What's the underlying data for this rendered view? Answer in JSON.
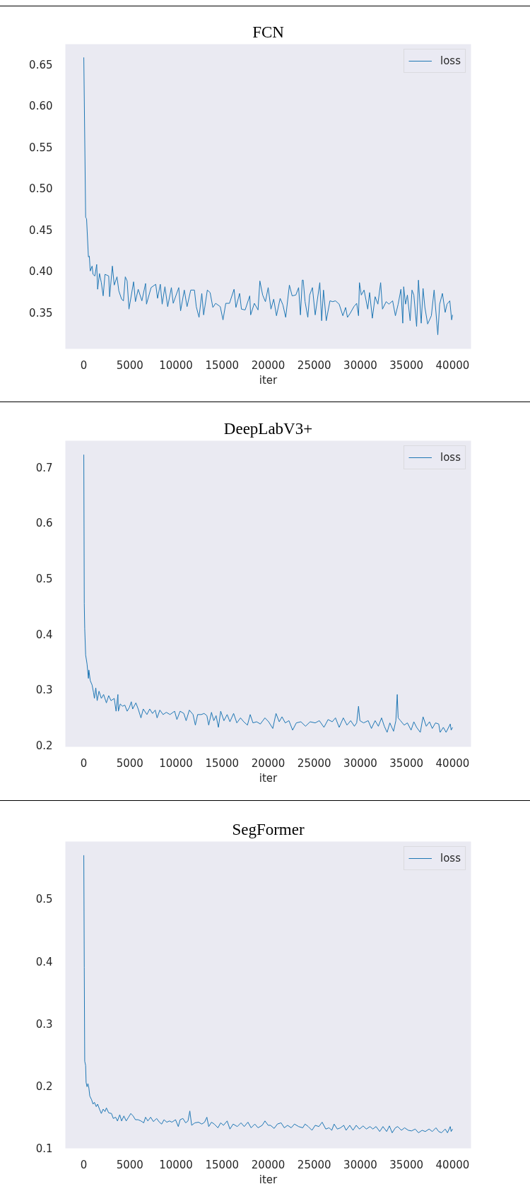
{
  "chart_data": [
    {
      "type": "line",
      "title": "FCN",
      "xlabel": "iter",
      "legend": "top right",
      "line_style": "solid",
      "xlim": [
        -2000,
        42000
      ],
      "ylim": [
        0.306,
        0.674
      ],
      "xticks": [
        0,
        5000,
        10000,
        15000,
        20000,
        25000,
        30000,
        35000,
        40000
      ],
      "yticks": [
        0.35,
        {
          "value": 0.4,
          "label": "0.40"
        },
        0.45,
        {
          "value": 0.5,
          "label": "0.50"
        },
        0.55,
        {
          "value": 0.6,
          "label": "0.60"
        },
        0.65
      ],
      "x": [
        0,
        200,
        300,
        500,
        600,
        700,
        900,
        1000,
        1200,
        1400,
        1500,
        1700,
        1900,
        2100,
        2300,
        2700,
        2800,
        3100,
        3300,
        3600,
        3800,
        4100,
        4300,
        4500,
        4700,
        4900,
        5400,
        5600,
        5900,
        6300,
        6700,
        6800,
        7300,
        7800,
        8000,
        8300,
        8500,
        8800,
        9100,
        9500,
        9700,
        10300,
        10500,
        10900,
        11200,
        11600,
        12000,
        12200,
        12500,
        12800,
        13000,
        13400,
        13700,
        14000,
        14300,
        14800,
        15100,
        15400,
        15800,
        16300,
        16500,
        16900,
        17100,
        17500,
        18000,
        18100,
        18500,
        18900,
        19100,
        19400,
        19700,
        20000,
        20300,
        20600,
        20900,
        21300,
        21600,
        21900,
        22300,
        22600,
        23000,
        23300,
        23500,
        23700,
        23800,
        24000,
        24300,
        24500,
        24800,
        25100,
        25600,
        25800,
        26000,
        26300,
        26700,
        27000,
        27300,
        27700,
        28100,
        28400,
        28600,
        28900,
        29300,
        29600,
        29800,
        29900,
        30100,
        30400,
        30800,
        31000,
        31300,
        31600,
        31900,
        32200,
        32400,
        32800,
        33100,
        33500,
        33800,
        34100,
        34400,
        34600,
        34700,
        34900,
        35100,
        35400,
        35600,
        35800,
        36100,
        36300,
        36600,
        36800,
        37000,
        37300,
        37700,
        38000,
        38400,
        38600,
        38900,
        39200,
        39400,
        39700,
        39900,
        40000
      ],
      "series": [
        {
          "name": "loss",
          "color": "#1f77b4",
          "values": [
            0.658,
            0.465,
            0.463,
            0.417,
            0.418,
            0.4,
            0.406,
            0.396,
            0.394,
            0.408,
            0.378,
            0.397,
            0.386,
            0.37,
            0.396,
            0.394,
            0.369,
            0.406,
            0.383,
            0.393,
            0.376,
            0.366,
            0.364,
            0.393,
            0.388,
            0.354,
            0.387,
            0.363,
            0.378,
            0.364,
            0.385,
            0.36,
            0.38,
            0.384,
            0.367,
            0.384,
            0.36,
            0.381,
            0.357,
            0.38,
            0.361,
            0.38,
            0.352,
            0.377,
            0.357,
            0.377,
            0.377,
            0.357,
            0.344,
            0.373,
            0.347,
            0.377,
            0.374,
            0.356,
            0.361,
            0.357,
            0.341,
            0.361,
            0.361,
            0.378,
            0.356,
            0.373,
            0.354,
            0.353,
            0.37,
            0.347,
            0.361,
            0.353,
            0.388,
            0.371,
            0.363,
            0.38,
            0.354,
            0.366,
            0.346,
            0.367,
            0.359,
            0.344,
            0.383,
            0.37,
            0.371,
            0.38,
            0.347,
            0.389,
            0.389,
            0.363,
            0.344,
            0.371,
            0.38,
            0.347,
            0.386,
            0.34,
            0.377,
            0.34,
            0.364,
            0.363,
            0.364,
            0.36,
            0.346,
            0.356,
            0.344,
            0.349,
            0.357,
            0.361,
            0.346,
            0.386,
            0.371,
            0.377,
            0.354,
            0.374,
            0.343,
            0.369,
            0.36,
            0.386,
            0.354,
            0.363,
            0.36,
            0.364,
            0.346,
            0.36,
            0.378,
            0.337,
            0.381,
            0.36,
            0.371,
            0.34,
            0.377,
            0.371,
            0.333,
            0.389,
            0.337,
            0.379,
            0.356,
            0.336,
            0.346,
            0.377,
            0.323,
            0.36,
            0.373,
            0.35,
            0.36,
            0.364,
            0.341,
            0.347
          ]
        }
      ]
    },
    {
      "type": "line",
      "title": "DeepLabV3+",
      "xlabel": "iter",
      "legend": "top right",
      "line_style": "solid",
      "xlim": [
        -2000,
        42000
      ],
      "ylim": [
        0.197,
        0.747
      ],
      "xticks": [
        0,
        5000,
        10000,
        15000,
        20000,
        25000,
        30000,
        35000,
        40000
      ],
      "yticks": [
        0.2,
        0.3,
        0.4,
        0.5,
        0.6,
        0.7
      ],
      "x": [
        0,
        50,
        100,
        200,
        350,
        500,
        550,
        700,
        900,
        1050,
        1150,
        1300,
        1450,
        1650,
        1900,
        2150,
        2450,
        2700,
        2950,
        3300,
        3500,
        3700,
        3750,
        3950,
        4200,
        4450,
        4700,
        4950,
        5150,
        5300,
        5650,
        5900,
        6200,
        6450,
        6850,
        7150,
        7450,
        7750,
        7950,
        8250,
        8600,
        8950,
        9350,
        9850,
        10100,
        10450,
        10850,
        11100,
        11450,
        11850,
        12100,
        12350,
        12750,
        13050,
        13350,
        13550,
        13850,
        14100,
        14350,
        14600,
        14850,
        15200,
        15550,
        15850,
        16250,
        16600,
        17000,
        17350,
        17750,
        18050,
        18350,
        18750,
        19150,
        19650,
        20050,
        20500,
        20850,
        21200,
        21500,
        21850,
        22250,
        22650,
        23050,
        23550,
        24050,
        24550,
        25100,
        25550,
        26050,
        26500,
        26950,
        27300,
        27700,
        28150,
        28550,
        28950,
        29350,
        29600,
        29800,
        29950,
        30350,
        30850,
        31200,
        31600,
        31950,
        32300,
        32600,
        32900,
        33200,
        33600,
        33850,
        34000,
        34100,
        34350,
        34750,
        35100,
        35500,
        35800,
        36100,
        36500,
        36800,
        37150,
        37500,
        37800,
        38150,
        38500,
        38650,
        39000,
        39300,
        39750,
        39850,
        40000
      ],
      "series": [
        {
          "name": "loss",
          "color": "#1f77b4",
          "values": [
            0.722,
            0.455,
            0.409,
            0.362,
            0.346,
            0.32,
            0.335,
            0.316,
            0.308,
            0.295,
            0.284,
            0.303,
            0.28,
            0.297,
            0.284,
            0.291,
            0.276,
            0.289,
            0.28,
            0.284,
            0.261,
            0.291,
            0.261,
            0.274,
            0.27,
            0.272,
            0.261,
            0.268,
            0.278,
            0.265,
            0.276,
            0.265,
            0.249,
            0.265,
            0.255,
            0.265,
            0.257,
            0.263,
            0.249,
            0.263,
            0.255,
            0.259,
            0.255,
            0.261,
            0.246,
            0.261,
            0.257,
            0.244,
            0.263,
            0.255,
            0.236,
            0.255,
            0.255,
            0.257,
            0.253,
            0.236,
            0.259,
            0.244,
            0.253,
            0.232,
            0.261,
            0.244,
            0.255,
            0.242,
            0.257,
            0.24,
            0.249,
            0.242,
            0.236,
            0.255,
            0.24,
            0.242,
            0.238,
            0.249,
            0.242,
            0.23,
            0.257,
            0.242,
            0.251,
            0.24,
            0.244,
            0.227,
            0.24,
            0.242,
            0.234,
            0.242,
            0.24,
            0.244,
            0.232,
            0.246,
            0.242,
            0.249,
            0.232,
            0.249,
            0.236,
            0.244,
            0.234,
            0.24,
            0.27,
            0.244,
            0.24,
            0.244,
            0.23,
            0.244,
            0.234,
            0.249,
            0.234,
            0.223,
            0.24,
            0.225,
            0.244,
            0.291,
            0.249,
            0.244,
            0.236,
            0.24,
            0.227,
            0.242,
            0.232,
            0.223,
            0.251,
            0.234,
            0.242,
            0.23,
            0.24,
            0.238,
            0.223,
            0.232,
            0.223,
            0.238,
            0.227,
            0.232
          ]
        }
      ]
    },
    {
      "type": "line",
      "title": "SegFormer",
      "xlabel": "iter",
      "legend": "top right",
      "line_style": "solid",
      "xlim": [
        -2000,
        42000
      ],
      "ylim": [
        0.099,
        0.592
      ],
      "xticks": [
        0,
        5000,
        10000,
        15000,
        20000,
        25000,
        30000,
        35000,
        40000
      ],
      "yticks": [
        0.1,
        0.2,
        0.3,
        0.4,
        0.5
      ],
      "x": [
        0,
        50,
        100,
        200,
        250,
        350,
        450,
        550,
        650,
        850,
        1000,
        1150,
        1350,
        1500,
        1700,
        1900,
        2100,
        2300,
        2450,
        2700,
        3000,
        3200,
        3450,
        3650,
        3900,
        4100,
        4350,
        4600,
        4850,
        5100,
        5350,
        5600,
        5900,
        6200,
        6500,
        6700,
        6950,
        7250,
        7550,
        7900,
        8200,
        8450,
        8700,
        9000,
        9300,
        9550,
        9950,
        10250,
        10450,
        10750,
        11050,
        11300,
        11500,
        11700,
        12050,
        12450,
        12800,
        13100,
        13350,
        13550,
        13850,
        14150,
        14550,
        14850,
        15150,
        15550,
        15850,
        16200,
        16650,
        17050,
        17400,
        17800,
        18150,
        18550,
        18900,
        19350,
        19650,
        20000,
        20250,
        20650,
        21000,
        21400,
        21750,
        22100,
        22500,
        22850,
        23300,
        23750,
        24000,
        24350,
        24750,
        25100,
        25500,
        25850,
        26250,
        26600,
        26900,
        27150,
        27500,
        27850,
        28200,
        28450,
        28850,
        29200,
        29550,
        29900,
        30300,
        30650,
        31050,
        31350,
        31700,
        32100,
        32450,
        32850,
        33150,
        33450,
        33800,
        34050,
        34450,
        34800,
        35200,
        35550,
        35950,
        36300,
        36700,
        37050,
        37450,
        37800,
        38200,
        38500,
        38800,
        39200,
        39450,
        39750,
        39850,
        40000
      ],
      "series": [
        {
          "name": "loss",
          "color": "#1f77b4",
          "values": [
            0.57,
            0.39,
            0.239,
            0.232,
            0.205,
            0.198,
            0.203,
            0.196,
            0.183,
            0.177,
            0.17,
            0.173,
            0.166,
            0.17,
            0.162,
            0.155,
            0.162,
            0.158,
            0.164,
            0.156,
            0.155,
            0.147,
            0.149,
            0.143,
            0.153,
            0.143,
            0.151,
            0.143,
            0.149,
            0.155,
            0.151,
            0.145,
            0.145,
            0.143,
            0.14,
            0.149,
            0.143,
            0.149,
            0.142,
            0.147,
            0.141,
            0.138,
            0.145,
            0.141,
            0.143,
            0.141,
            0.145,
            0.134,
            0.145,
            0.147,
            0.14,
            0.143,
            0.159,
            0.136,
            0.14,
            0.141,
            0.138,
            0.141,
            0.149,
            0.134,
            0.141,
            0.138,
            0.132,
            0.14,
            0.136,
            0.143,
            0.13,
            0.138,
            0.134,
            0.14,
            0.134,
            0.141,
            0.132,
            0.138,
            0.132,
            0.136,
            0.143,
            0.136,
            0.136,
            0.131,
            0.138,
            0.14,
            0.132,
            0.136,
            0.132,
            0.138,
            0.134,
            0.132,
            0.138,
            0.134,
            0.128,
            0.136,
            0.134,
            0.141,
            0.13,
            0.132,
            0.128,
            0.138,
            0.13,
            0.132,
            0.136,
            0.128,
            0.136,
            0.128,
            0.136,
            0.13,
            0.135,
            0.13,
            0.134,
            0.13,
            0.134,
            0.126,
            0.134,
            0.126,
            0.135,
            0.124,
            0.132,
            0.134,
            0.128,
            0.132,
            0.128,
            0.127,
            0.13,
            0.124,
            0.128,
            0.126,
            0.13,
            0.126,
            0.132,
            0.126,
            0.124,
            0.13,
            0.124,
            0.134,
            0.126,
            0.13
          ]
        }
      ]
    }
  ]
}
